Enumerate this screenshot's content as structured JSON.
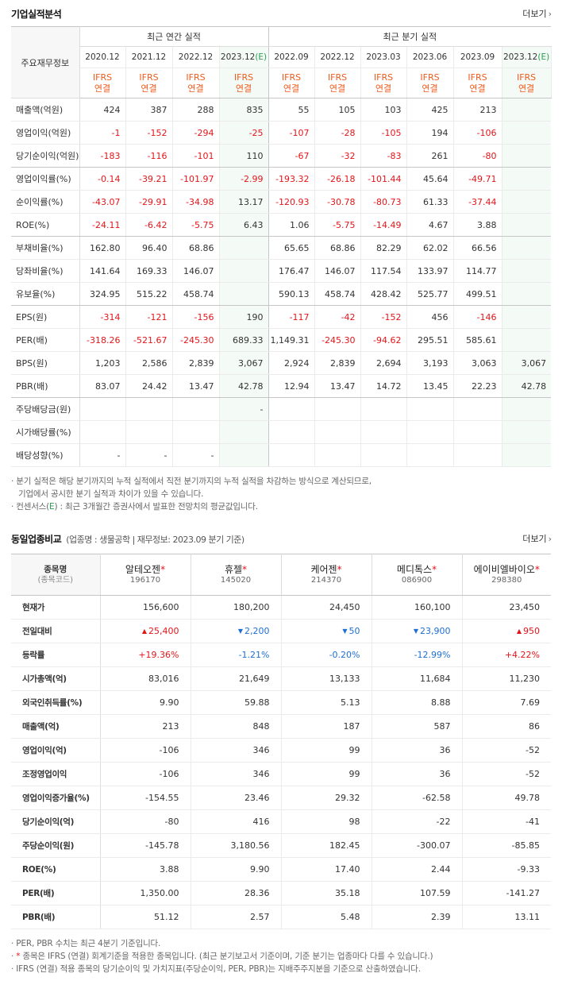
{
  "section1": {
    "title": "기업실적분석",
    "more_label": "더보기",
    "corner_label": "주요재무정보",
    "annual_label": "최근 연간 실적",
    "quarterly_label": "최근 분기 실적",
    "annual_periods": [
      "2020.12",
      "2021.12",
      "2022.12",
      "2023.12"
    ],
    "quarterly_periods": [
      "2022.09",
      "2022.12",
      "2023.03",
      "2023.06",
      "2023.09",
      "2023.12"
    ],
    "est_marker": "(E)",
    "basis_line1": "IFRS",
    "basis_line2": "연결",
    "rows": [
      {
        "label": "매출액(억원)",
        "values": [
          "424",
          "387",
          "288",
          "835",
          "55",
          "105",
          "103",
          "425",
          "213",
          ""
        ]
      },
      {
        "label": "영업이익(억원)",
        "values": [
          "-1",
          "-152",
          "-294",
          "-25",
          "-107",
          "-28",
          "-105",
          "194",
          "-106",
          ""
        ]
      },
      {
        "label": "당기순이익(억원)",
        "values": [
          "-183",
          "-116",
          "-101",
          "110",
          "-67",
          "-32",
          "-83",
          "261",
          "-80",
          ""
        ]
      },
      {
        "label": "영업이익률(%)",
        "values": [
          "-0.14",
          "-39.21",
          "-101.97",
          "-2.99",
          "-193.32",
          "-26.18",
          "-101.44",
          "45.64",
          "-49.71",
          ""
        ]
      },
      {
        "label": "순이익률(%)",
        "values": [
          "-43.07",
          "-29.91",
          "-34.98",
          "13.17",
          "-120.93",
          "-30.78",
          "-80.73",
          "61.33",
          "-37.44",
          ""
        ]
      },
      {
        "label": "ROE(%)",
        "values": [
          "-24.11",
          "-6.42",
          "-5.75",
          "6.43",
          "1.06",
          "-5.75",
          "-14.49",
          "4.67",
          "3.88",
          ""
        ]
      },
      {
        "label": "부채비율(%)",
        "values": [
          "162.80",
          "96.40",
          "68.86",
          "",
          "65.65",
          "68.86",
          "82.29",
          "62.02",
          "66.56",
          ""
        ]
      },
      {
        "label": "당좌비율(%)",
        "values": [
          "141.64",
          "169.33",
          "146.07",
          "",
          "176.47",
          "146.07",
          "117.54",
          "133.97",
          "114.77",
          ""
        ]
      },
      {
        "label": "유보율(%)",
        "values": [
          "324.95",
          "515.22",
          "458.74",
          "",
          "590.13",
          "458.74",
          "428.42",
          "525.77",
          "499.51",
          ""
        ]
      },
      {
        "label": "EPS(원)",
        "values": [
          "-314",
          "-121",
          "-156",
          "190",
          "-117",
          "-42",
          "-152",
          "456",
          "-146",
          ""
        ]
      },
      {
        "label": "PER(배)",
        "values": [
          "-318.26",
          "-521.67",
          "-245.30",
          "689.33",
          "1,149.31",
          "-245.30",
          "-94.62",
          "295.51",
          "585.61",
          ""
        ]
      },
      {
        "label": "BPS(원)",
        "values": [
          "1,203",
          "2,586",
          "2,839",
          "3,067",
          "2,924",
          "2,839",
          "2,694",
          "3,193",
          "3,063",
          "3,067"
        ]
      },
      {
        "label": "PBR(배)",
        "values": [
          "83.07",
          "24.42",
          "13.47",
          "42.78",
          "12.94",
          "13.47",
          "14.72",
          "13.45",
          "22.23",
          "42.78"
        ]
      },
      {
        "label": "주당배당금(원)",
        "values": [
          "",
          "",
          "",
          "-",
          "",
          "",
          "",
          "",
          "",
          ""
        ]
      },
      {
        "label": "시가배당률(%)",
        "values": [
          "",
          "",
          "",
          "",
          "",
          "",
          "",
          "",
          "",
          ""
        ]
      },
      {
        "label": "배당성향(%)",
        "values": [
          "-",
          "-",
          "-",
          "",
          "",
          "",
          "",
          "",
          "",
          ""
        ]
      }
    ],
    "notes": {
      "n1a": "분기 실적은 해당 분기까지의 누적 실적에서 직전 분기까지의 누적 실적을 차감하는 방식으로 계산되므로,",
      "n1b": "기업에서 공시한 분기 실적과 차이가 있을 수 있습니다.",
      "n2_pre": "컨센서스(",
      "n2_e": "E",
      "n2_post": ") : 최근 3개월간 증권사에서 발표한 전망치의 평균값입니다."
    }
  },
  "section2": {
    "title": "동일업종비교",
    "subtitle": "(업종명 : 생물공학 | 재무정보: 2023.09 분기 기준)",
    "more_label": "더보기",
    "corner_label": "종목명",
    "corner_sub": "(종목코드)",
    "companies": [
      {
        "name": "알테오젠",
        "code": "196170"
      },
      {
        "name": "휴젤",
        "code": "145020"
      },
      {
        "name": "케어젠",
        "code": "214370"
      },
      {
        "name": "메디톡스",
        "code": "086900"
      },
      {
        "name": "에이비엘바이오",
        "code": "298380"
      }
    ],
    "rows": [
      {
        "label": "현재가",
        "values": [
          "156,600",
          "180,200",
          "24,450",
          "160,100",
          "23,450"
        ]
      },
      {
        "label": "전일대비",
        "values": [
          "25,400",
          "2,200",
          "50",
          "23,900",
          "950"
        ],
        "dirs": [
          "up",
          "down",
          "down",
          "down",
          "up"
        ]
      },
      {
        "label": "등락률",
        "values": [
          "+19.36%",
          "-1.21%",
          "-0.20%",
          "-12.99%",
          "+4.22%"
        ],
        "dirs": [
          "up",
          "down",
          "down",
          "down",
          "up"
        ]
      },
      {
        "label": "시가총액(억)",
        "values": [
          "83,016",
          "21,649",
          "13,133",
          "11,684",
          "11,230"
        ]
      },
      {
        "label": "외국인취득률(%)",
        "values": [
          "9.90",
          "59.88",
          "5.13",
          "8.88",
          "7.69"
        ]
      },
      {
        "label": "매출액(억)",
        "values": [
          "213",
          "848",
          "187",
          "587",
          "86"
        ]
      },
      {
        "label": "영업이익(억)",
        "values": [
          "-106",
          "346",
          "99",
          "36",
          "-52"
        ]
      },
      {
        "label": "조정영업이익",
        "values": [
          "-106",
          "346",
          "99",
          "36",
          "-52"
        ]
      },
      {
        "label": "영업이익증가율(%)",
        "values": [
          "-154.55",
          "23.46",
          "29.32",
          "-62.58",
          "49.78"
        ]
      },
      {
        "label": "당기순이익(억)",
        "values": [
          "-80",
          "416",
          "98",
          "-22",
          "-41"
        ]
      },
      {
        "label": "주당순이익(원)",
        "values": [
          "-145.78",
          "3,180.56",
          "182.45",
          "-300.07",
          "-85.85"
        ]
      },
      {
        "label": "ROE(%)",
        "values": [
          "3.88",
          "9.90",
          "17.40",
          "2.44",
          "-9.33"
        ]
      },
      {
        "label": "PER(배)",
        "values": [
          "1,350.00",
          "28.36",
          "35.18",
          "107.59",
          "-141.27"
        ]
      },
      {
        "label": "PBR(배)",
        "values": [
          "51.12",
          "2.57",
          "5.48",
          "2.39",
          "13.11"
        ]
      }
    ],
    "notes": {
      "n1": "PER, PBR 수치는 최근 4분기 기준입니다.",
      "n2_star": "*",
      "n2_post": " 종목은 IFRS (연결) 회계기준을 적용한 종목입니다. (최근 분기보고서 기준이며, 기준 분기는 업종마다 다를 수 있습니다.)",
      "n3": "IFRS (연결) 적용 종목의 당기순이익 및 가치지표(주당순이익, PER, PBR)는 지배주주지분을 기준으로 산출하였습니다."
    }
  }
}
